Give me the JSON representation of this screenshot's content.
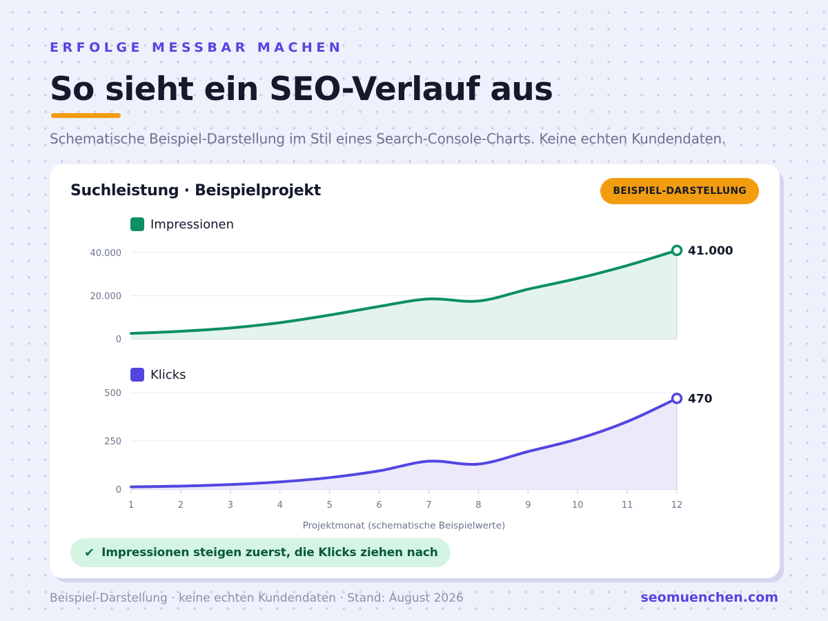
{
  "header": {
    "eyebrow": "ERFOLGE MESSBAR MACHEN",
    "title": "So sieht ein SEO-Verlauf aus",
    "subtitle": "Schematische Beispiel-Darstellung im Stil eines Search-Console-Charts. Keine echten Kundendaten."
  },
  "card": {
    "title": "Suchleistung · Beispielprojekt",
    "badge": "BEISPIEL-DARSTELLUNG",
    "note": "Impressionen steigen zuerst, die Klicks ziehen nach",
    "note_icon": "check-icon"
  },
  "footer": {
    "left": "Beispiel-Darstellung · keine echten Kundendaten · Stand: August 2026",
    "right": "seomuenchen.com"
  },
  "colors": {
    "impressions": "#0c8f63",
    "impressions_fill": "#e3f4ec",
    "clicks": "#5346e0",
    "clicks_fill": "#ece9fb",
    "accent": "#f29d0f"
  },
  "chart_data": [
    {
      "type": "area",
      "series": [
        {
          "name": "Impressionen",
          "x": [
            1,
            2,
            3,
            4,
            5,
            6,
            7,
            8,
            9,
            10,
            11,
            12
          ],
          "values": [
            2500,
            3500,
            5000,
            7500,
            11000,
            15000,
            18500,
            17500,
            23000,
            28000,
            34000,
            41000
          ]
        }
      ],
      "end_label": "41.000",
      "ylim": [
        0,
        40000
      ],
      "y_ticks": [
        0,
        20000,
        40000
      ],
      "y_tick_labels": [
        "0",
        "20.000",
        "40.000"
      ],
      "grid": true,
      "legend": "top-left"
    },
    {
      "type": "area",
      "series": [
        {
          "name": "Klicks",
          "x": [
            1,
            2,
            3,
            4,
            5,
            6,
            7,
            8,
            9,
            10,
            11,
            12
          ],
          "values": [
            12,
            16,
            24,
            38,
            60,
            95,
            145,
            130,
            195,
            260,
            350,
            470
          ]
        }
      ],
      "end_label": "470",
      "ylim": [
        0,
        500
      ],
      "y_ticks": [
        0,
        250,
        500
      ],
      "y_tick_labels": [
        "0",
        "250",
        "500"
      ],
      "x_ticks": [
        1,
        2,
        3,
        4,
        5,
        6,
        7,
        8,
        9,
        10,
        11,
        12
      ],
      "xlabel": "Projektmonat (schematische Beispielwerte)",
      "grid": true,
      "legend": "top-left"
    }
  ]
}
